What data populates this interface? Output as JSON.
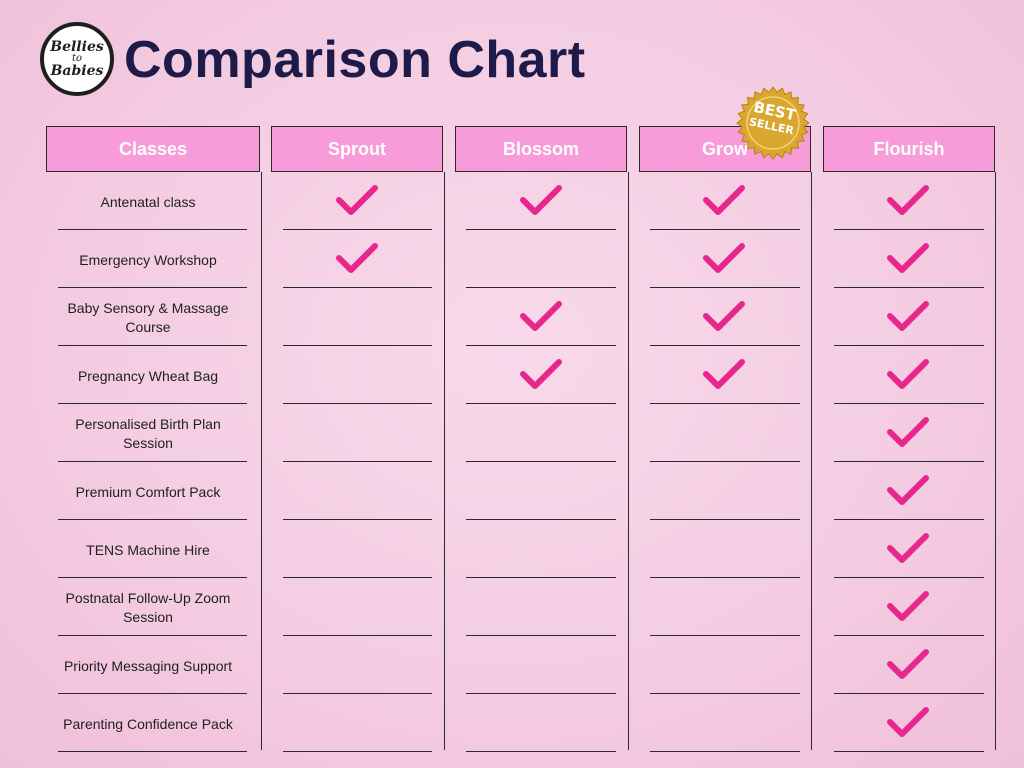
{
  "logo": {
    "line1": "Bellies",
    "line2": "to",
    "line3": "Babies"
  },
  "title": "Comparison Chart",
  "badge": {
    "line1": "BEST",
    "line2": "SELLER",
    "color": "#d9a62e"
  },
  "colors": {
    "header_bg": "#f79bd9",
    "check": "#e8278c",
    "title": "#1e1a4a"
  },
  "columns": [
    {
      "label": "Classes"
    },
    {
      "label": "Sprout"
    },
    {
      "label": "Blossom"
    },
    {
      "label": "Grow"
    },
    {
      "label": "Flourish"
    }
  ],
  "rows": [
    {
      "label": "Antenatal class",
      "checks": [
        true,
        true,
        true,
        true
      ]
    },
    {
      "label": "Emergency Workshop",
      "checks": [
        true,
        false,
        true,
        true
      ]
    },
    {
      "label": "Baby Sensory & Massage Course",
      "checks": [
        false,
        true,
        true,
        true
      ]
    },
    {
      "label": "Pregnancy Wheat Bag",
      "checks": [
        false,
        true,
        true,
        true
      ]
    },
    {
      "label": "Personalised Birth Plan Session",
      "checks": [
        false,
        false,
        false,
        true
      ]
    },
    {
      "label": "Premium Comfort Pack",
      "checks": [
        false,
        false,
        false,
        true
      ]
    },
    {
      "label": "TENS Machine Hire",
      "checks": [
        false,
        false,
        false,
        true
      ]
    },
    {
      "label": "Postnatal Follow-Up Zoom Session",
      "checks": [
        false,
        false,
        false,
        true
      ]
    },
    {
      "label": "Priority Messaging Support",
      "checks": [
        false,
        false,
        false,
        true
      ]
    },
    {
      "label": "Parenting Confidence Pack",
      "checks": [
        false,
        false,
        false,
        true
      ]
    }
  ]
}
